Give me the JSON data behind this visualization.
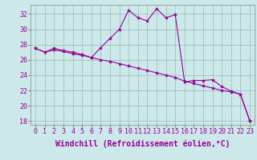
{
  "xlabel": "Windchill (Refroidissement éolien,°C)",
  "x": [
    0,
    1,
    2,
    3,
    4,
    5,
    6,
    7,
    8,
    9,
    10,
    11,
    12,
    13,
    14,
    15,
    16,
    17,
    18,
    19,
    20,
    21,
    22,
    23
  ],
  "line1": [
    27.5,
    27.0,
    27.5,
    27.2,
    27.0,
    26.7,
    26.3,
    27.6,
    28.8,
    30.0,
    32.5,
    31.5,
    31.1,
    32.7,
    31.5,
    31.9,
    23.1,
    23.3,
    23.3,
    23.4,
    22.5,
    21.9,
    21.5,
    18.0
  ],
  "line2": [
    27.5,
    27.0,
    27.3,
    27.1,
    26.8,
    26.6,
    26.3,
    26.0,
    25.8,
    25.5,
    25.2,
    24.9,
    24.6,
    24.3,
    24.0,
    23.7,
    23.2,
    22.9,
    22.6,
    22.3,
    22.0,
    21.8,
    21.5,
    18.0
  ],
  "line_color": "#990099",
  "bg_color": "#cce8e8",
  "grid_color": "#99bbbb",
  "ylim": [
    17.5,
    33.2
  ],
  "yticks": [
    18,
    20,
    22,
    24,
    26,
    28,
    30,
    32
  ],
  "xticks": [
    0,
    1,
    2,
    3,
    4,
    5,
    6,
    7,
    8,
    9,
    10,
    11,
    12,
    13,
    14,
    15,
    16,
    17,
    18,
    19,
    20,
    21,
    22,
    23
  ],
  "xlim": [
    -0.5,
    23.5
  ],
  "tick_fontsize": 6,
  "label_fontsize": 7
}
